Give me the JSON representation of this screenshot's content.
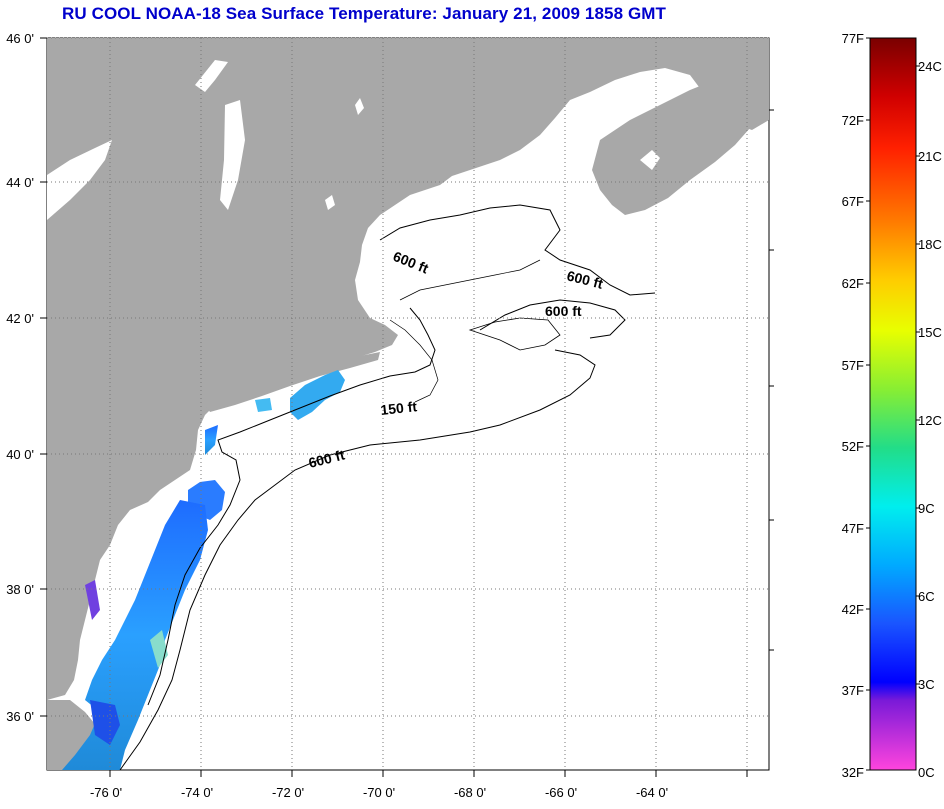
{
  "title": "RU COOL  NOAA-18  Sea Surface Temperature:  January 21, 2009 1858 GMT",
  "map": {
    "lat_labels": [
      "46 0'",
      "44 0'",
      "42 0'",
      "40 0'",
      "38 0'",
      "36 0'"
    ],
    "lon_labels": [
      "-76 0'",
      "-74 0'",
      "-72 0'",
      "-70 0'",
      "-68 0'",
      "-66 0'",
      "-64 0'"
    ],
    "contour_labels": [
      {
        "text": "600 ft",
        "name": "contour-label-600ft-gulf-of-maine"
      },
      {
        "text": "600 ft",
        "name": "contour-label-600ft-scotian"
      },
      {
        "text": "600 ft",
        "name": "contour-label-600ft-georges"
      },
      {
        "text": "150 ft",
        "name": "contour-label-150ft"
      },
      {
        "text": "600 ft",
        "name": "contour-label-600ft-shelf"
      }
    ],
    "colors": {
      "land": "#a8a8a8",
      "ocean": "#ffffff",
      "grid": "#777777"
    }
  },
  "colorbar": {
    "fahrenheit": [
      "77F",
      "72F",
      "67F",
      "62F",
      "57F",
      "52F",
      "47F",
      "42F",
      "37F",
      "32F"
    ],
    "celsius": [
      "24C",
      "21C",
      "18C",
      "15C",
      "12C",
      "9C",
      "6C",
      "3C",
      "0C"
    ]
  }
}
